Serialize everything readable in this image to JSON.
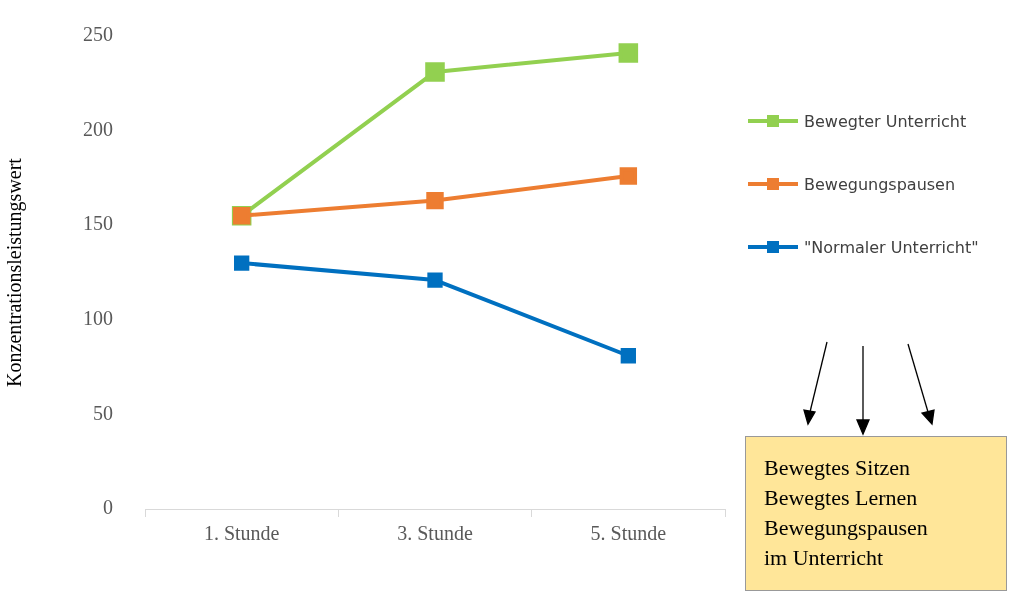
{
  "chart_data": {
    "type": "line",
    "ylabel": "Konzentrationsleistungswert",
    "categories": [
      "1. Stunde",
      "3. Stunde",
      "5. Stunde"
    ],
    "series": [
      {
        "name": "Bewegter Unterricht",
        "color": "#92d050",
        "values": [
          155,
          231,
          241
        ]
      },
      {
        "name": "Bewegungspausen",
        "color": "#ed7d31",
        "values": [
          155,
          163,
          176
        ]
      },
      {
        "name": "\"Normaler Unterricht\"",
        "color": "#0070c0",
        "values": [
          130,
          121,
          81
        ]
      }
    ],
    "ylim": [
      0,
      250
    ],
    "yticks": [
      0,
      50,
      100,
      150,
      200,
      250
    ],
    "grid": false,
    "legend": "right",
    "marker": "square",
    "line_style": "solid",
    "annotations": [
      "Bewegtes Sitzen\nBewegtes Lernen\nBewegungspausen\nim Unterricht"
    ]
  }
}
